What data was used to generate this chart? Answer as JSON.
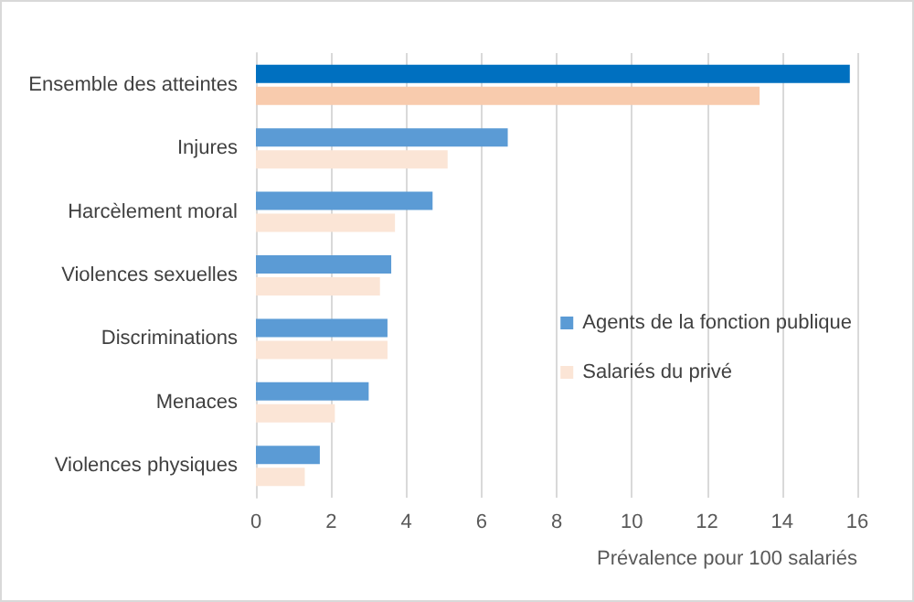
{
  "chart_data": {
    "type": "bar",
    "orientation": "horizontal",
    "xlabel": "Prévalence pour 100 salariés",
    "categories": [
      "Ensemble des atteintes",
      "Injures",
      "Harcèlement moral",
      "Violences sexuelles",
      "Discriminations",
      "Menaces",
      "Violences physiques"
    ],
    "series": [
      {
        "name": "Agents de la fonction publique",
        "color": "#5b9bd5",
        "colors": [
          "#0070c0",
          "#5b9bd5",
          "#5b9bd5",
          "#5b9bd5",
          "#5b9bd5",
          "#5b9bd5",
          "#5b9bd5"
        ],
        "values": [
          15.8,
          6.7,
          4.7,
          3.6,
          3.5,
          3.0,
          1.7
        ]
      },
      {
        "name": "Salariés du privé",
        "color": "#fbe5d6",
        "colors": [
          "#f8cbad",
          "#fbe5d6",
          "#fbe5d6",
          "#fbe5d6",
          "#fbe5d6",
          "#fbe5d6",
          "#fbe5d6"
        ],
        "values": [
          13.4,
          5.1,
          3.7,
          3.3,
          3.5,
          2.1,
          1.3
        ]
      }
    ],
    "xlim": [
      0,
      16
    ],
    "xticks": [
      0,
      2,
      4,
      6,
      8,
      10,
      12,
      14,
      16
    ],
    "grid": "x",
    "legend": "right"
  }
}
